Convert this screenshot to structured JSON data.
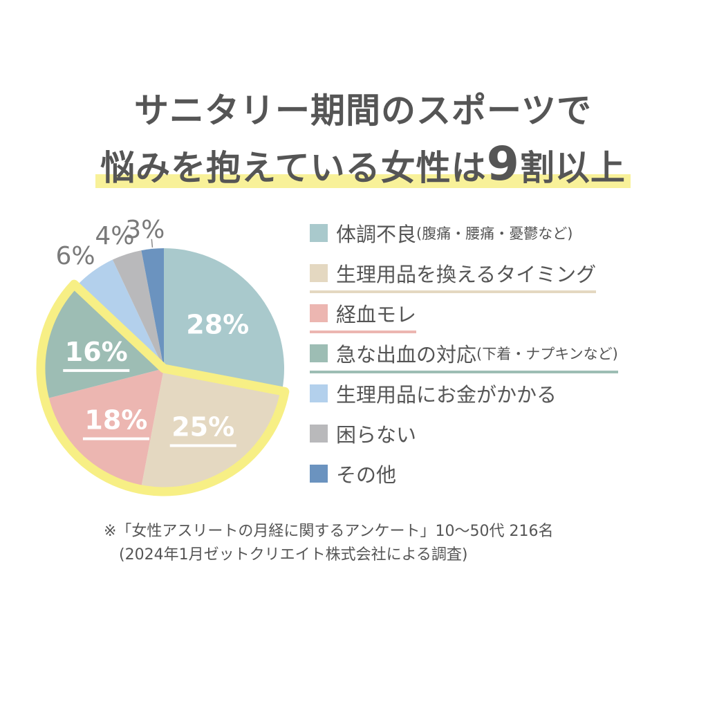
{
  "title": {
    "line1": "サニタリー期間のスポーツで",
    "line2_pre": "悩みを抱えている女性は",
    "line2_num": "9",
    "line2_post": "割以上",
    "highlight_color": "#f8f199"
  },
  "chart_data": {
    "type": "pie",
    "start": "top",
    "direction": "clockwise",
    "highlighted_group": [
      "生理用品を換えるタイミング",
      "経血モレ",
      "急な出血の対応"
    ],
    "highlight_color": "#f7ef85",
    "slices": [
      {
        "label": "体調不良",
        "detail": "(腹痛・腰痛・憂鬱など)",
        "value": 28,
        "text": "28%",
        "color": "#a9c9cc",
        "underline": false
      },
      {
        "label": "生理用品を換えるタイミング",
        "detail": "",
        "value": 25,
        "text": "25%",
        "color": "#e4d8c1",
        "underline": true
      },
      {
        "label": "経血モレ",
        "detail": "",
        "value": 18,
        "text": "18%",
        "color": "#ecb6b1",
        "underline": true
      },
      {
        "label": "急な出血の対応",
        "detail": "(下着・ナプキンなど)",
        "value": 16,
        "text": "16%",
        "color": "#9dbdb4",
        "underline": true
      },
      {
        "label": "生理用品にお金がかかる",
        "detail": "",
        "value": 6,
        "text": "6%",
        "color": "#b3d0ec",
        "underline": false
      },
      {
        "label": "困らない",
        "detail": "",
        "value": 4,
        "text": "4%",
        "color": "#b9b9bb",
        "underline": false
      },
      {
        "label": "その他",
        "detail": "",
        "value": 3,
        "text": "3%",
        "color": "#6b93bf",
        "underline": false
      }
    ]
  },
  "note": {
    "line1": "※「女性アスリートの月経に関するアンケート」10〜50代 216名",
    "line2": "(2024年1月ゼットクリエイト株式会社による調査)"
  }
}
